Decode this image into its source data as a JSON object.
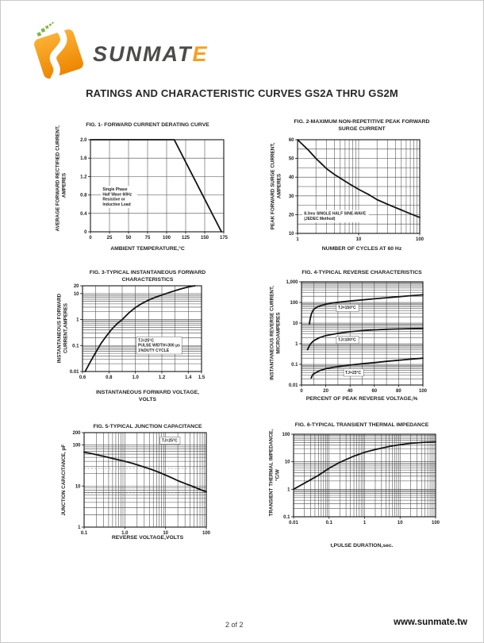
{
  "header": {
    "brand": "SUNMATE",
    "brand_main": "SUNM",
    "brand_mid": "AT",
    "brand_accent_letter": "E"
  },
  "page_title": "RATINGS AND CHARACTERISTIC CURVES GS2A THRU GS2M",
  "footer": {
    "page_number": "2 of 2",
    "website": "www.sunmate.tw"
  },
  "colors": {
    "logo_orange": "#EE8600",
    "logo_orange_light": "#FBB034",
    "logo_green": "#7DB742",
    "brand_text": "#4B4B49",
    "brand_accent": "#F5A11C",
    "ink": "#1C1C1C"
  },
  "chart_data": [
    {
      "type": "line",
      "title": "FIG. 1- FORWARD CURRENT DERATING CURVE",
      "ylabel": "AVERAGE FORWARD RECTIFIED CURRENT,\nAMPERES",
      "xlabel": "AMBIENT TEMPERATURE,°C",
      "x": {
        "scale": "linear",
        "min": 0,
        "max": 175,
        "grid_step": 25,
        "ticks": [
          0,
          25,
          50,
          75,
          100,
          125,
          150,
          175
        ],
        "tick_labels": [
          "0",
          "25",
          "50",
          "75",
          "100",
          "125",
          "150",
          "175"
        ]
      },
      "y": {
        "scale": "linear",
        "min": 0,
        "max": 2.0,
        "grid_step": 0.4,
        "ticks": [
          0,
          0.4,
          0.8,
          1.2,
          1.6,
          2.0
        ],
        "tick_labels": [
          "0",
          "0.4",
          "0.8",
          "1.2",
          "1.6",
          "2.0"
        ]
      },
      "series": [
        {
          "name": "forward-current-derating",
          "points": [
            [
              0,
              2.0
            ],
            [
              110,
              2.0
            ],
            [
              172,
              0
            ]
          ]
        }
      ],
      "annotations": [
        {
          "text": "Single Phase\nHalf Wave 60Hz\nResistive or\nInductive Load",
          "x": 16,
          "y": 0.98,
          "boxed": false
        }
      ]
    },
    {
      "type": "line",
      "title": "FIG. 2-MAXIMUM NON-REPETITIVE PEAK FORWARD\nSURGE CURRENT",
      "ylabel": "PEAK FORWARD SURGE CURRENT,\nAMPERES",
      "xlabel": "NUMBER OF CYCLES AT 60 Hz",
      "x": {
        "scale": "log",
        "min": 1,
        "max": 100,
        "ticks": [
          1,
          10,
          100
        ],
        "tick_labels": [
          "1",
          "10",
          "100"
        ]
      },
      "y": {
        "scale": "linear",
        "min": 10,
        "max": 60,
        "grid_step": 5,
        "ticks": [
          10,
          20,
          30,
          40,
          50,
          60
        ],
        "tick_labels": [
          "10",
          "20",
          "30",
          "40",
          "50",
          "60"
        ]
      },
      "dashed_v": [
        60
      ],
      "series": [
        {
          "name": "peak-surge-current",
          "points": [
            [
              1,
              60
            ],
            [
              1.5,
              54.5
            ],
            [
              2,
              50
            ],
            [
              2.5,
              47
            ],
            [
              3,
              44.5
            ],
            [
              4,
              41.5
            ],
            [
              5,
              39.5
            ],
            [
              7,
              36.5
            ],
            [
              10,
              33.5
            ],
            [
              15,
              30.5
            ],
            [
              20,
              28
            ],
            [
              30,
              25.5
            ],
            [
              50,
              22.5
            ],
            [
              70,
              20.5
            ],
            [
              100,
              18.5
            ]
          ]
        }
      ],
      "annotations": [
        {
          "text": "8.3ms SINGLE HALF SINE-WAVE\n(JEDEC Method)",
          "x": 1.28,
          "y": 22,
          "boxed": false
        }
      ]
    },
    {
      "type": "line",
      "title": "FIG. 3-TYPICAL INSTANTANEOUS FORWARD\nCHARACTERISTICS",
      "ylabel": "INSTANTANEOUS FORWARD\nCURRENT,AMPERES",
      "xlabel": "INSTANTANEOUS FORWARD VOLTAGE,\nVOLTS",
      "x": {
        "scale": "linear",
        "min": 0.6,
        "max": 1.5,
        "grid_step": 0.1,
        "ticks": [
          0.6,
          0.8,
          1.0,
          1.2,
          1.4,
          1.5
        ],
        "tick_labels": [
          "0.6",
          "0.8",
          "1.0",
          "1.2",
          "1.4",
          "1.5"
        ]
      },
      "y": {
        "scale": "log",
        "min": 0.01,
        "max": 20,
        "ticks": [
          0.01,
          0.1,
          1,
          10,
          20
        ],
        "tick_labels": [
          "0.01",
          "0.1",
          "1",
          "10",
          "20"
        ]
      },
      "series": [
        {
          "name": "forward-characteristics",
          "points": [
            [
              0.62,
              0.01
            ],
            [
              0.66,
              0.024
            ],
            [
              0.7,
              0.055
            ],
            [
              0.74,
              0.12
            ],
            [
              0.78,
              0.23
            ],
            [
              0.82,
              0.42
            ],
            [
              0.86,
              0.68
            ],
            [
              0.9,
              1.0
            ],
            [
              0.95,
              1.8
            ],
            [
              1.0,
              2.9
            ],
            [
              1.05,
              4.2
            ],
            [
              1.1,
              5.6
            ],
            [
              1.15,
              7.2
            ],
            [
              1.2,
              8.8
            ],
            [
              1.25,
              10.8
            ],
            [
              1.3,
              13
            ],
            [
              1.35,
              15.5
            ],
            [
              1.4,
              18
            ],
            [
              1.45,
              20
            ]
          ]
        }
      ],
      "annotations": [
        {
          "text": "TJ=25°C\nPULSE WIDTH=300 μs\n1%DUTY CYCLE",
          "x": 1.02,
          "y": 0.2,
          "boxed": true
        }
      ]
    },
    {
      "type": "line",
      "title": "FIG. 4-TYPICAL REVERSE CHARACTERISTICS",
      "ylabel": "INSTANTANEOUS REVERSE CURRENT,\nMICROAMPERES",
      "xlabel": "PERCENT OF PEAK REVERSE VOLTAGE,%",
      "x": {
        "scale": "linear",
        "min": 0,
        "max": 100,
        "grid_step": 10,
        "ticks": [
          0,
          20,
          40,
          60,
          80,
          100
        ],
        "tick_labels": [
          "0",
          "20",
          "40",
          "60",
          "80",
          "100"
        ]
      },
      "y": {
        "scale": "log",
        "min": 0.01,
        "max": 1000,
        "ticks": [
          0.01,
          0.1,
          1,
          10,
          100,
          1000
        ],
        "tick_labels": [
          "0.01",
          "0.1",
          "1",
          "10",
          "100",
          "1,000"
        ]
      },
      "series": [
        {
          "name": "tj-150c",
          "label": "TJ=150°C",
          "points": [
            [
              6.5,
              9
            ],
            [
              7,
              14
            ],
            [
              8,
              26
            ],
            [
              9,
              36
            ],
            [
              10,
              45
            ],
            [
              12,
              57
            ],
            [
              15,
              68
            ],
            [
              20,
              82
            ],
            [
              25,
              93
            ],
            [
              30,
              102
            ],
            [
              40,
              118
            ],
            [
              50,
              133
            ],
            [
              60,
              150
            ],
            [
              70,
              168
            ],
            [
              80,
              190
            ],
            [
              90,
              212
            ],
            [
              100,
              235
            ]
          ]
        },
        {
          "name": "tj-100c",
          "label": "TJ=100°C",
          "points": [
            [
              5,
              0.52
            ],
            [
              6,
              0.7
            ],
            [
              7,
              0.9
            ],
            [
              8,
              1.05
            ],
            [
              10,
              1.4
            ],
            [
              15,
              2.0
            ],
            [
              20,
              2.5
            ],
            [
              30,
              3.2
            ],
            [
              40,
              3.8
            ],
            [
              50,
              4.3
            ],
            [
              60,
              4.7
            ],
            [
              70,
              5.0
            ],
            [
              80,
              5.2
            ],
            [
              90,
              5.4
            ],
            [
              100,
              5.6
            ]
          ]
        },
        {
          "name": "tj-25c",
          "label": "TJ=25°C",
          "points": [
            [
              8,
              0.022
            ],
            [
              9,
              0.03
            ],
            [
              10,
              0.035
            ],
            [
              15,
              0.05
            ],
            [
              20,
              0.062
            ],
            [
              30,
              0.078
            ],
            [
              40,
              0.092
            ],
            [
              50,
              0.107
            ],
            [
              60,
              0.122
            ],
            [
              70,
              0.14
            ],
            [
              80,
              0.158
            ],
            [
              90,
              0.178
            ],
            [
              100,
              0.2
            ]
          ]
        }
      ],
      "annotations": [
        {
          "text": "TJ=150°C",
          "x": 30,
          "y": 75,
          "boxed": true
        },
        {
          "text": "TJ=100°C",
          "x": 30,
          "y": 2.1,
          "boxed": true
        },
        {
          "text": "TJ=25°C",
          "x": 36,
          "y": 0.055,
          "boxed": true
        }
      ]
    },
    {
      "type": "line",
      "title": "FIG. 5-TYPICAL JUNCTION CAPACITANCE",
      "ylabel": "JUNCTION CAPACITANCE, pF",
      "xlabel": "REVERSE VOLTAGE,VOLTS",
      "x": {
        "scale": "log",
        "min": 0.1,
        "max": 100,
        "ticks": [
          0.1,
          1,
          10,
          100
        ],
        "tick_labels": [
          "0.1",
          "1.0",
          "10",
          "100"
        ]
      },
      "y": {
        "scale": "log",
        "min": 1,
        "max": 200,
        "ticks": [
          1,
          10,
          100,
          200
        ],
        "tick_labels": [
          "1",
          "10",
          "100",
          "200"
        ]
      },
      "dashed_h": [
        27,
        6.8
      ],
      "series": [
        {
          "name": "junction-capacitance",
          "points": [
            [
              0.1,
              67
            ],
            [
              0.15,
              62
            ],
            [
              0.2,
              58
            ],
            [
              0.3,
              53
            ],
            [
              0.5,
              47
            ],
            [
              0.7,
              43.5
            ],
            [
              1,
              40
            ],
            [
              1.5,
              36
            ],
            [
              2,
              33
            ],
            [
              3,
              29
            ],
            [
              5,
              24.5
            ],
            [
              7,
              21.5
            ],
            [
              10,
              18.5
            ],
            [
              15,
              15.5
            ],
            [
              20,
              13.5
            ],
            [
              30,
              11.5
            ],
            [
              50,
              9.5
            ],
            [
              70,
              8.3
            ],
            [
              100,
              7.2
            ]
          ]
        }
      ],
      "annotations": [
        {
          "text": "TJ=25°C",
          "x": 8,
          "y": 150,
          "boxed": true
        }
      ]
    },
    {
      "type": "line",
      "title": "FIG. 6-TYPICAL TRANSIENT THERMAL IMPEDANCE",
      "ylabel": "TRANSIENT THERMAL IMPEDANCE,\n°C/W",
      "xlabel": "t,PULSE DURATION,sec.",
      "x": {
        "scale": "log",
        "min": 0.01,
        "max": 100,
        "ticks": [
          0.01,
          0.1,
          1,
          10,
          100
        ],
        "tick_labels": [
          "0.01",
          "0.1",
          "1",
          "10",
          "100"
        ]
      },
      "y": {
        "scale": "log",
        "min": 0.1,
        "max": 100,
        "ticks": [
          0.1,
          1,
          10,
          100
        ],
        "tick_labels": [
          "0.1",
          "1",
          "10",
          "100"
        ]
      },
      "dashed_h": [
        0.2
      ],
      "series": [
        {
          "name": "transient-thermal-impedance",
          "points": [
            [
              0.01,
              1
            ],
            [
              0.02,
              1.65
            ],
            [
              0.05,
              3.2
            ],
            [
              0.1,
              5.8
            ],
            [
              0.2,
              9.5
            ],
            [
              0.5,
              16
            ],
            [
              1,
              22
            ],
            [
              2,
              28
            ],
            [
              5,
              36
            ],
            [
              10,
              42
            ],
            [
              20,
              47
            ],
            [
              50,
              51
            ],
            [
              100,
              53
            ]
          ]
        }
      ],
      "annotations": []
    }
  ]
}
